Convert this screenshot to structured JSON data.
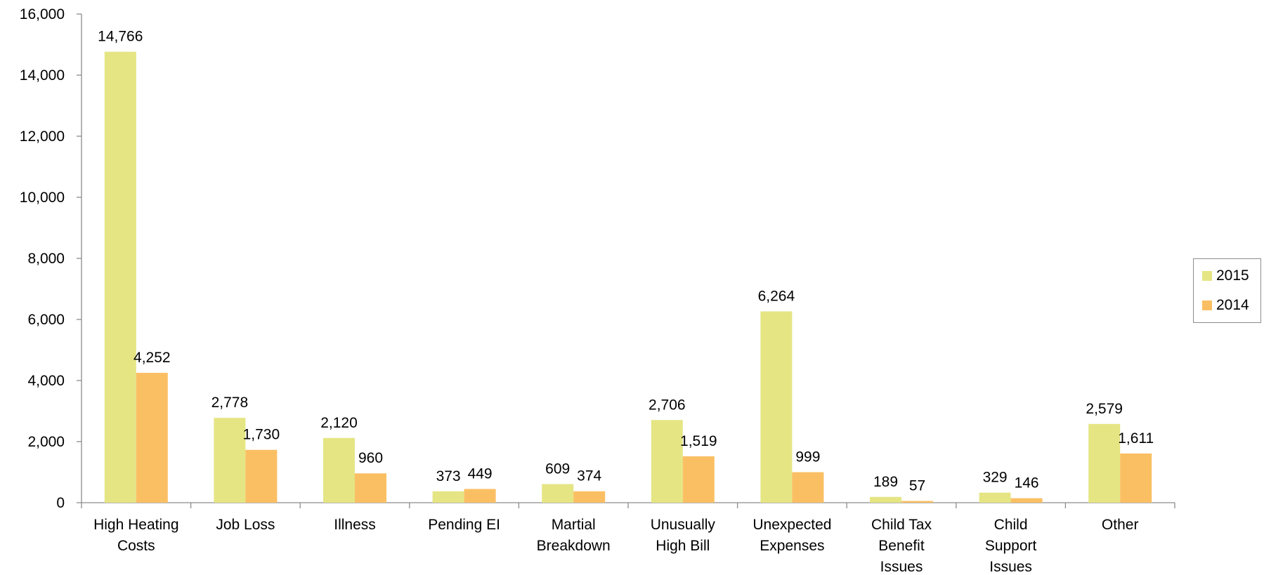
{
  "chart_data": {
    "type": "bar",
    "title": "",
    "xlabel": "",
    "ylabel": "",
    "ylim": [
      0,
      16000
    ],
    "yticks": [
      0,
      2000,
      4000,
      6000,
      8000,
      10000,
      12000,
      14000,
      16000
    ],
    "ytick_labels": [
      "0",
      "2,000",
      "4,000",
      "6,000",
      "8,000",
      "10,000",
      "12,000",
      "14,000",
      "16,000"
    ],
    "grid": false,
    "legend_position": "right",
    "categories": [
      [
        "High Heating",
        "Costs"
      ],
      [
        "Job Loss"
      ],
      [
        "Illness"
      ],
      [
        "Pending EI"
      ],
      [
        "Martial",
        "Breakdown"
      ],
      [
        "Unusually",
        "High Bill"
      ],
      [
        "Unexpected",
        "Expenses"
      ],
      [
        "Child Tax",
        "Benefit",
        "Issues"
      ],
      [
        "Child",
        "Support",
        "Issues"
      ],
      [
        "Other"
      ]
    ],
    "series": [
      {
        "name": "2015",
        "color": "#e5e584",
        "values": [
          14766,
          2778,
          2120,
          373,
          609,
          2706,
          6264,
          189,
          329,
          2579
        ],
        "labels": [
          "14,766",
          "2,778",
          "2,120",
          "373",
          "609",
          "2,706",
          "6,264",
          "189",
          "329",
          "2,579"
        ]
      },
      {
        "name": "2014",
        "color": "#fbbf63",
        "values": [
          4252,
          1730,
          960,
          449,
          374,
          1519,
          999,
          57,
          146,
          1611
        ],
        "labels": [
          "4,252",
          "1,730",
          "960",
          "449",
          "374",
          "1,519",
          "999",
          "57",
          "146",
          "1,611"
        ]
      }
    ]
  }
}
